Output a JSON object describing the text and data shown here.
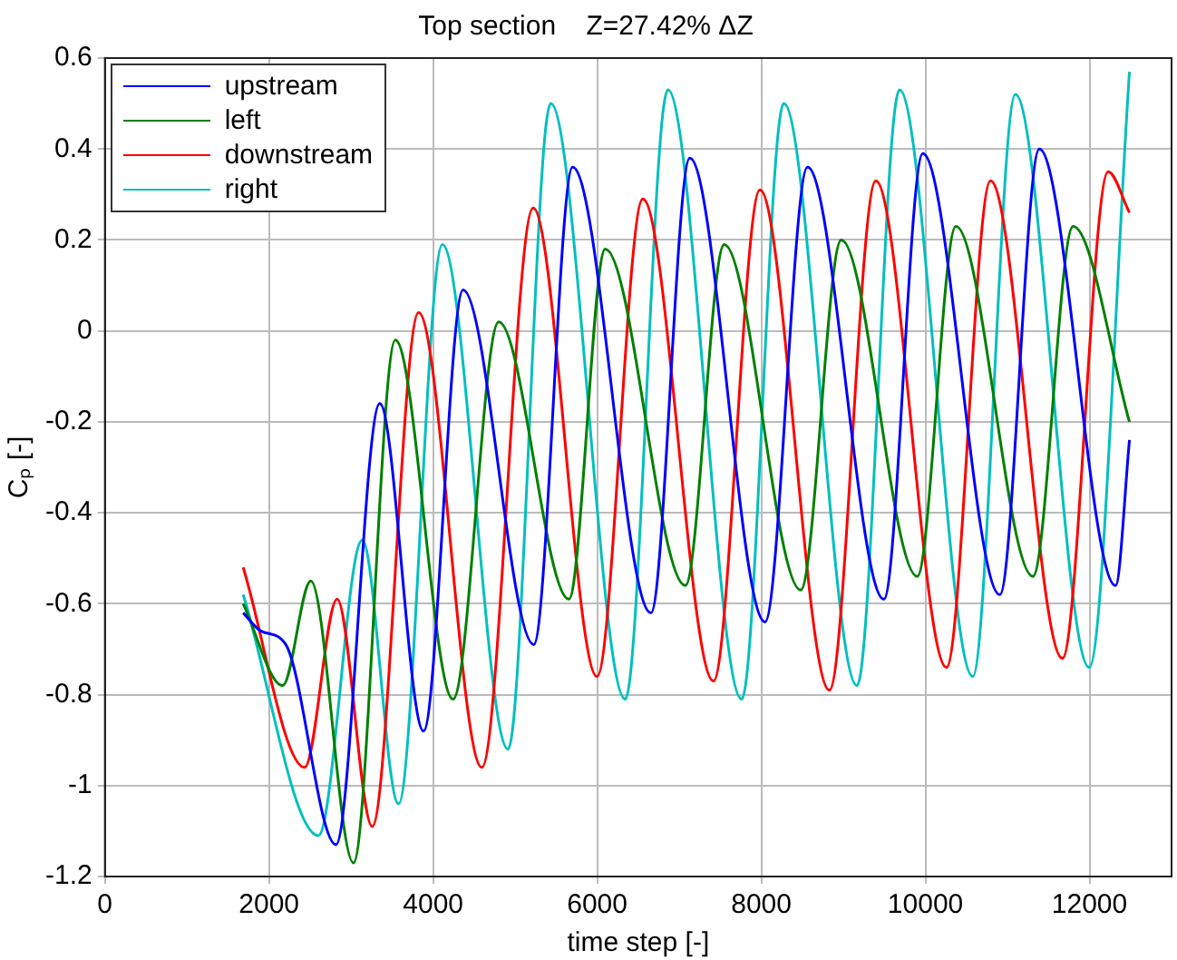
{
  "chart_data": {
    "type": "line",
    "title": "Top section    Z=27.42% ΔZ",
    "xlabel": "time step [-]",
    "ylabel": "Cₚ [-]",
    "xlim": [
      0,
      13000
    ],
    "xticks": [
      0,
      2000,
      4000,
      6000,
      8000,
      10000,
      12000
    ],
    "ylim": [
      -1.2,
      0.6
    ],
    "yticks": [
      -1.2,
      -1,
      -0.8,
      -0.6,
      -0.4,
      -0.2,
      0,
      0.2,
      0.4,
      0.6
    ],
    "grid": true,
    "legend": "top left",
    "marker": "none",
    "line_style": "solid",
    "series": [
      {
        "name": "upstream",
        "color": "#0000ff",
        "x": [
          1685,
          1900,
          2205,
          2815,
          3350,
          3884,
          4365,
          5227,
          5700,
          6655,
          7128,
          8045,
          8563,
          9494,
          9968,
          10907,
          11388,
          12318,
          12487
        ],
        "values": [
          -0.62,
          -0.66,
          -0.69,
          -1.13,
          -0.16,
          -0.88,
          0.09,
          -0.69,
          0.36,
          -0.62,
          0.38,
          -0.64,
          0.36,
          -0.59,
          0.39,
          -0.58,
          0.4,
          -0.56,
          -0.24
        ]
      },
      {
        "name": "left",
        "color": "#008000",
        "x": [
          1685,
          2166,
          2510,
          3029,
          3540,
          4243,
          4800,
          5655,
          6098,
          7074,
          7548,
          8480,
          8975,
          9900,
          10372,
          11310,
          11800,
          12487
        ],
        "values": [
          -0.6,
          -0.78,
          -0.55,
          -1.17,
          -0.02,
          -0.81,
          0.02,
          -0.59,
          0.18,
          -0.56,
          0.19,
          -0.57,
          0.2,
          -0.54,
          0.23,
          -0.54,
          0.23,
          -0.2
        ]
      },
      {
        "name": "downstream",
        "color": "#ff0000",
        "x": [
          1685,
          2434,
          2830,
          3258,
          3823,
          4594,
          5219,
          5998,
          6556,
          7417,
          7983,
          8830,
          9395,
          10257,
          10793,
          11670,
          12227,
          12487
        ],
        "values": [
          -0.52,
          -0.96,
          -0.59,
          -1.09,
          0.04,
          -0.96,
          0.27,
          -0.76,
          0.29,
          -0.77,
          0.31,
          -0.79,
          0.33,
          -0.74,
          0.33,
          -0.72,
          0.35,
          0.26
        ]
      },
      {
        "name": "right",
        "color": "#00bfbf",
        "x": [
          1685,
          2601,
          3136,
          3579,
          4113,
          4914,
          5433,
          6342,
          6861,
          7761,
          8274,
          9167,
          9684,
          10577,
          11097,
          11997,
          12487
        ],
        "values": [
          -0.58,
          -1.11,
          -0.46,
          -1.04,
          0.19,
          -0.92,
          0.5,
          -0.81,
          0.53,
          -0.81,
          0.5,
          -0.78,
          0.53,
          -0.76,
          0.52,
          -0.74,
          0.57
        ]
      }
    ]
  }
}
